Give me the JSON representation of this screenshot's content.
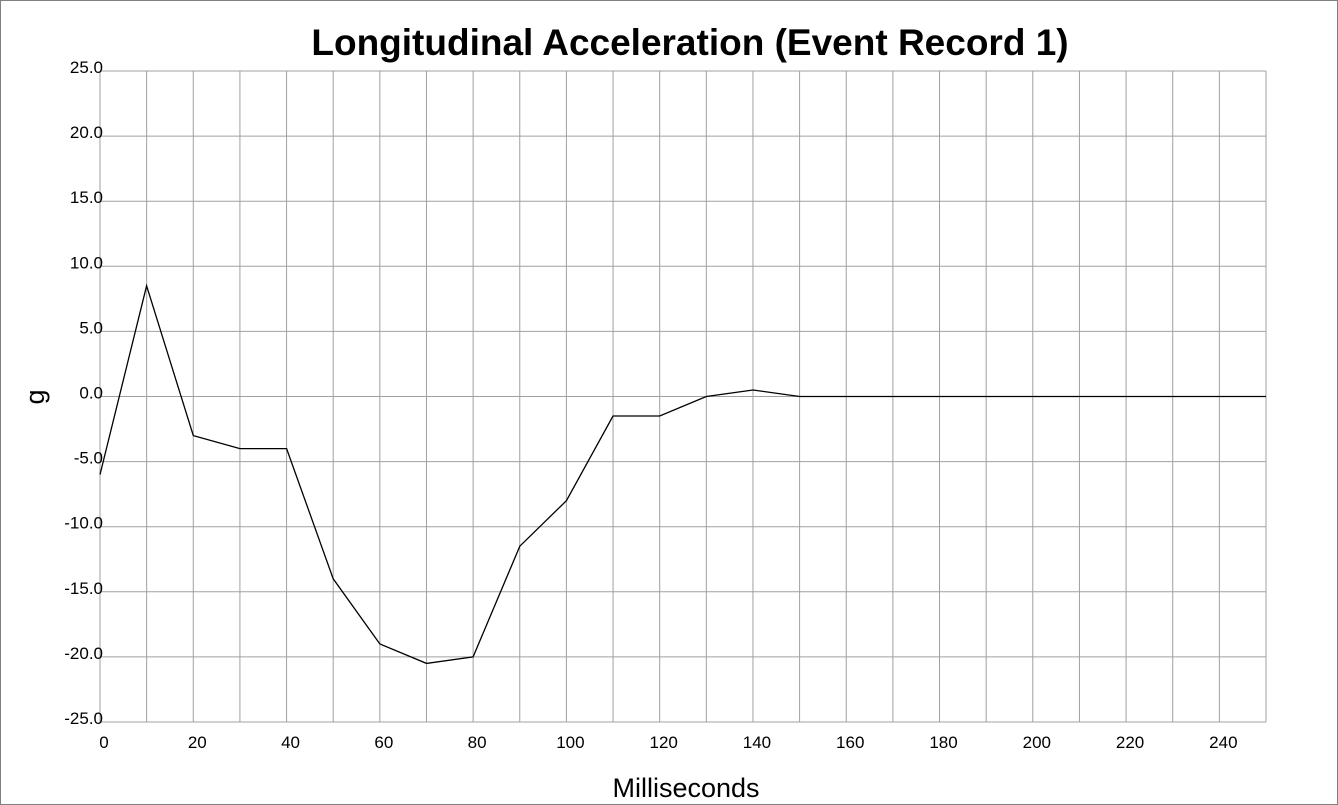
{
  "chart_data": {
    "type": "line",
    "title": "Longitudinal Acceleration (Event Record 1)",
    "xlabel": "Milliseconds",
    "ylabel": "g",
    "xlim": [
      0,
      250
    ],
    "ylim": [
      -25,
      25
    ],
    "x_ticks": [
      0,
      20,
      40,
      60,
      80,
      100,
      120,
      140,
      160,
      180,
      200,
      220,
      240
    ],
    "y_ticks": [
      "25.0",
      "20.0",
      "15.0",
      "10.0",
      "5.0",
      "0.0",
      "-5.0",
      "-10.0",
      "-15.0",
      "-20.0",
      "-25.0"
    ],
    "grid": true,
    "line_color": "#000000",
    "grid_color": "#a0a0a0",
    "series": [
      {
        "x": [
          0,
          10,
          20,
          30,
          40,
          50,
          60,
          70,
          80,
          90,
          100,
          110,
          120,
          130,
          140,
          150,
          160,
          170,
          180,
          190,
          200,
          210,
          220,
          230,
          240,
          250
        ],
        "values": [
          -6,
          8.5,
          -3,
          -4,
          -4,
          -14,
          -19,
          -20.5,
          -20,
          -11.5,
          -8,
          -1.5,
          -1.5,
          0,
          0.5,
          0,
          0,
          0,
          0,
          0,
          0,
          0,
          0,
          0,
          0,
          0
        ]
      }
    ]
  }
}
